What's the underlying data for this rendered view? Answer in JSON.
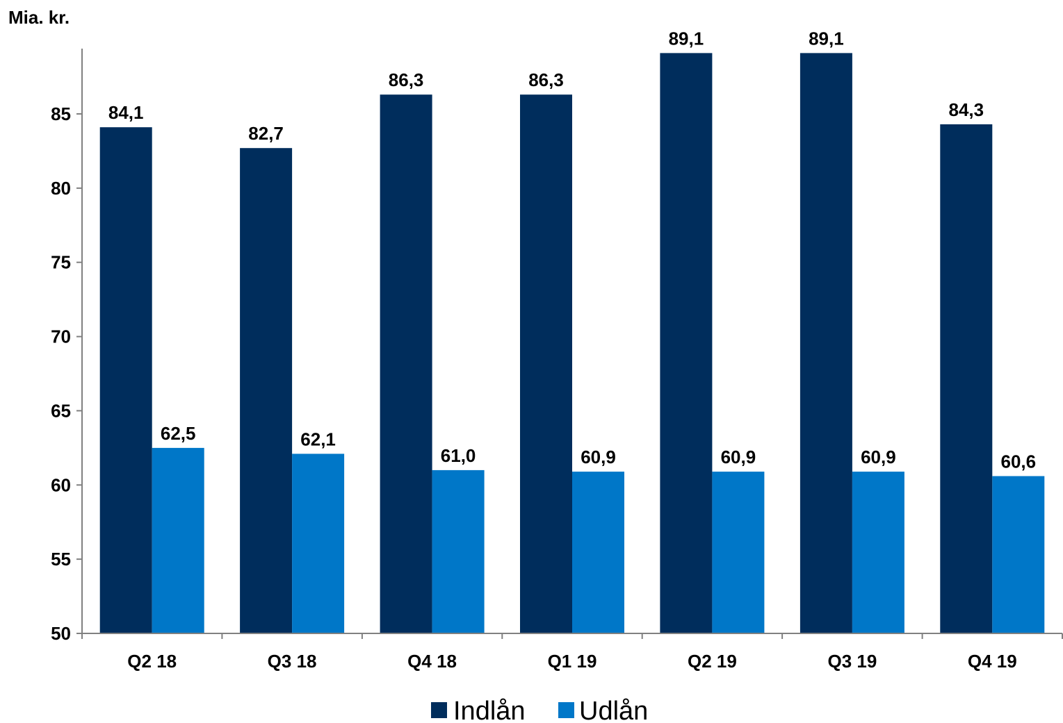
{
  "chart_data": {
    "type": "bar",
    "unit_label": "Mia. kr.",
    "categories": [
      "Q2 18",
      "Q3 18",
      "Q4 18",
      "Q1 19",
      "Q2 19",
      "Q3 19",
      "Q4 19"
    ],
    "series": [
      {
        "name": "Indlån",
        "color": "#002D5C",
        "values": [
          84.1,
          82.7,
          86.3,
          86.3,
          89.1,
          89.1,
          84.3
        ],
        "labels": [
          "84,1",
          "82,7",
          "86,3",
          "86,3",
          "89,1",
          "89,1",
          "84,3"
        ]
      },
      {
        "name": "Udlån",
        "color": "#0077C8",
        "values": [
          62.5,
          62.1,
          61.0,
          60.9,
          60.9,
          60.9,
          60.6
        ],
        "labels": [
          "62,5",
          "62,1",
          "61,0",
          "60,9",
          "60,9",
          "60,9",
          "60,6"
        ]
      }
    ],
    "ylim": [
      50,
      90
    ],
    "yticks": [
      50,
      55,
      60,
      65,
      70,
      75,
      80,
      85
    ],
    "grid": false,
    "legend_position": "bottom"
  }
}
